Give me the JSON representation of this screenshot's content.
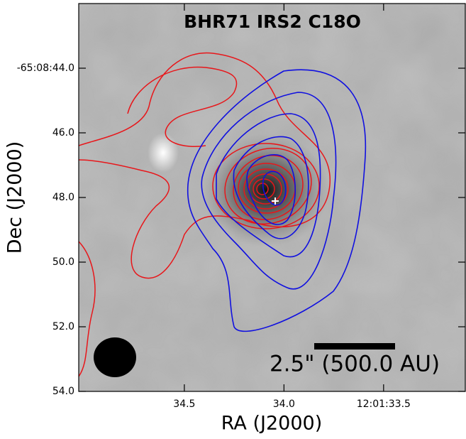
{
  "chart_data": {
    "type": "contour",
    "title": "BHR71 IRS2 C18O",
    "x_label": "RA (J2000)",
    "y_label": "Dec (J2000)",
    "xlim": [
      35.03,
      33.09
    ],
    "ylim": [
      54.0,
      42.0
    ],
    "xticks": [
      {
        "value": 34.5,
        "label": "34.5"
      },
      {
        "value": 34.0,
        "label": "34.0"
      },
      {
        "value": 33.5,
        "label": "12:01:33.5"
      }
    ],
    "yticks": [
      {
        "value": 44.0,
        "label": "-65:08:44.0"
      },
      {
        "value": 46.0,
        "label": "46.0"
      },
      {
        "value": 48.0,
        "label": "48.0"
      },
      {
        "value": 50.0,
        "label": "50.0"
      },
      {
        "value": 52.0,
        "label": "52.0"
      },
      {
        "value": 54.0,
        "label": "54.0"
      }
    ],
    "scale_bar_label": "2.5\" (500.0 AU)"
  }
}
